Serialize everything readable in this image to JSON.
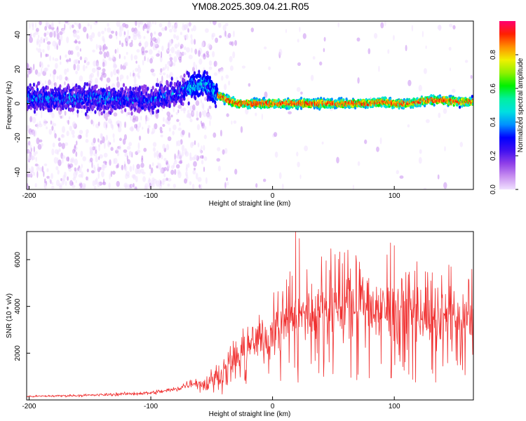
{
  "title": "YM08.2025.309.04.21.R05",
  "chart_data": [
    {
      "type": "heatmap",
      "name": "spectrogram",
      "xlabel": "Height of straight line (km)",
      "ylabel": "Frequency (Hz)",
      "xlim": [
        -202,
        165
      ],
      "ylim": [
        -50,
        48
      ],
      "xticks": [
        -200,
        -100,
        0,
        100
      ],
      "yticks": [
        -40,
        -20,
        0,
        20,
        40
      ],
      "grid": false,
      "description": "Normalized spectral amplitude vs height and frequency; diffuse low-amplitude scatter below -50 km, bright narrow band near 0 Hz above -50 km",
      "ridge": {
        "x": [
          -202,
          -150,
          -100,
          -80,
          -70,
          -60,
          -55,
          -50,
          -45,
          -40,
          -30,
          -20,
          0,
          20,
          40,
          60,
          80,
          90,
          100,
          110,
          120,
          130,
          140,
          150,
          165
        ],
        "freq": [
          3,
          3,
          2,
          6,
          9,
          11,
          12,
          8,
          5,
          3,
          0,
          0,
          0,
          0,
          0,
          0,
          0,
          1,
          0,
          0,
          1,
          2,
          2,
          1,
          1
        ]
      },
      "colorbar": {
        "label": "Normalized spectral amplitude",
        "range": [
          0,
          1
        ],
        "ticks": [
          0.0,
          0.2,
          0.4,
          0.6,
          0.8
        ],
        "tick_labels": [
          "0.0",
          "0.2",
          "0.4",
          "0.6",
          "0.8"
        ],
        "colors": [
          "#f0e0ff",
          "#c890f0",
          "#9040e8",
          "#4010f0",
          "#0000ff",
          "#0090ff",
          "#00e0e0",
          "#00f0a0",
          "#00f000",
          "#90f000",
          "#f0f000",
          "#ff9000",
          "#ff2000",
          "#ff0070"
        ]
      }
    },
    {
      "type": "line",
      "name": "snr",
      "xlabel": "Height of straight line (km)",
      "ylabel": "SNR (10 * v/v)",
      "xlim": [
        -202,
        165
      ],
      "ylim": [
        0,
        7200
      ],
      "xticks": [
        -200,
        -100,
        0,
        100
      ],
      "yticks": [
        2000,
        4000,
        6000
      ],
      "grid": false,
      "color": "#f03030",
      "envelope": {
        "x": [
          -202,
          -150,
          -100,
          -80,
          -65,
          -55,
          -40,
          -30,
          -20,
          0,
          20,
          40,
          60,
          80,
          100,
          120,
          140,
          165
        ],
        "y": [
          150,
          200,
          300,
          450,
          750,
          650,
          1200,
          1800,
          2300,
          2900,
          3500,
          3800,
          3950,
          4000,
          3950,
          3750,
          3500,
          3300
        ]
      },
      "peaks": [
        {
          "x": 19,
          "y": 7200
        },
        {
          "x": 22,
          "y": 6900
        },
        {
          "x": 100,
          "y": 6600
        },
        {
          "x": 44,
          "y": 5950
        }
      ]
    }
  ]
}
